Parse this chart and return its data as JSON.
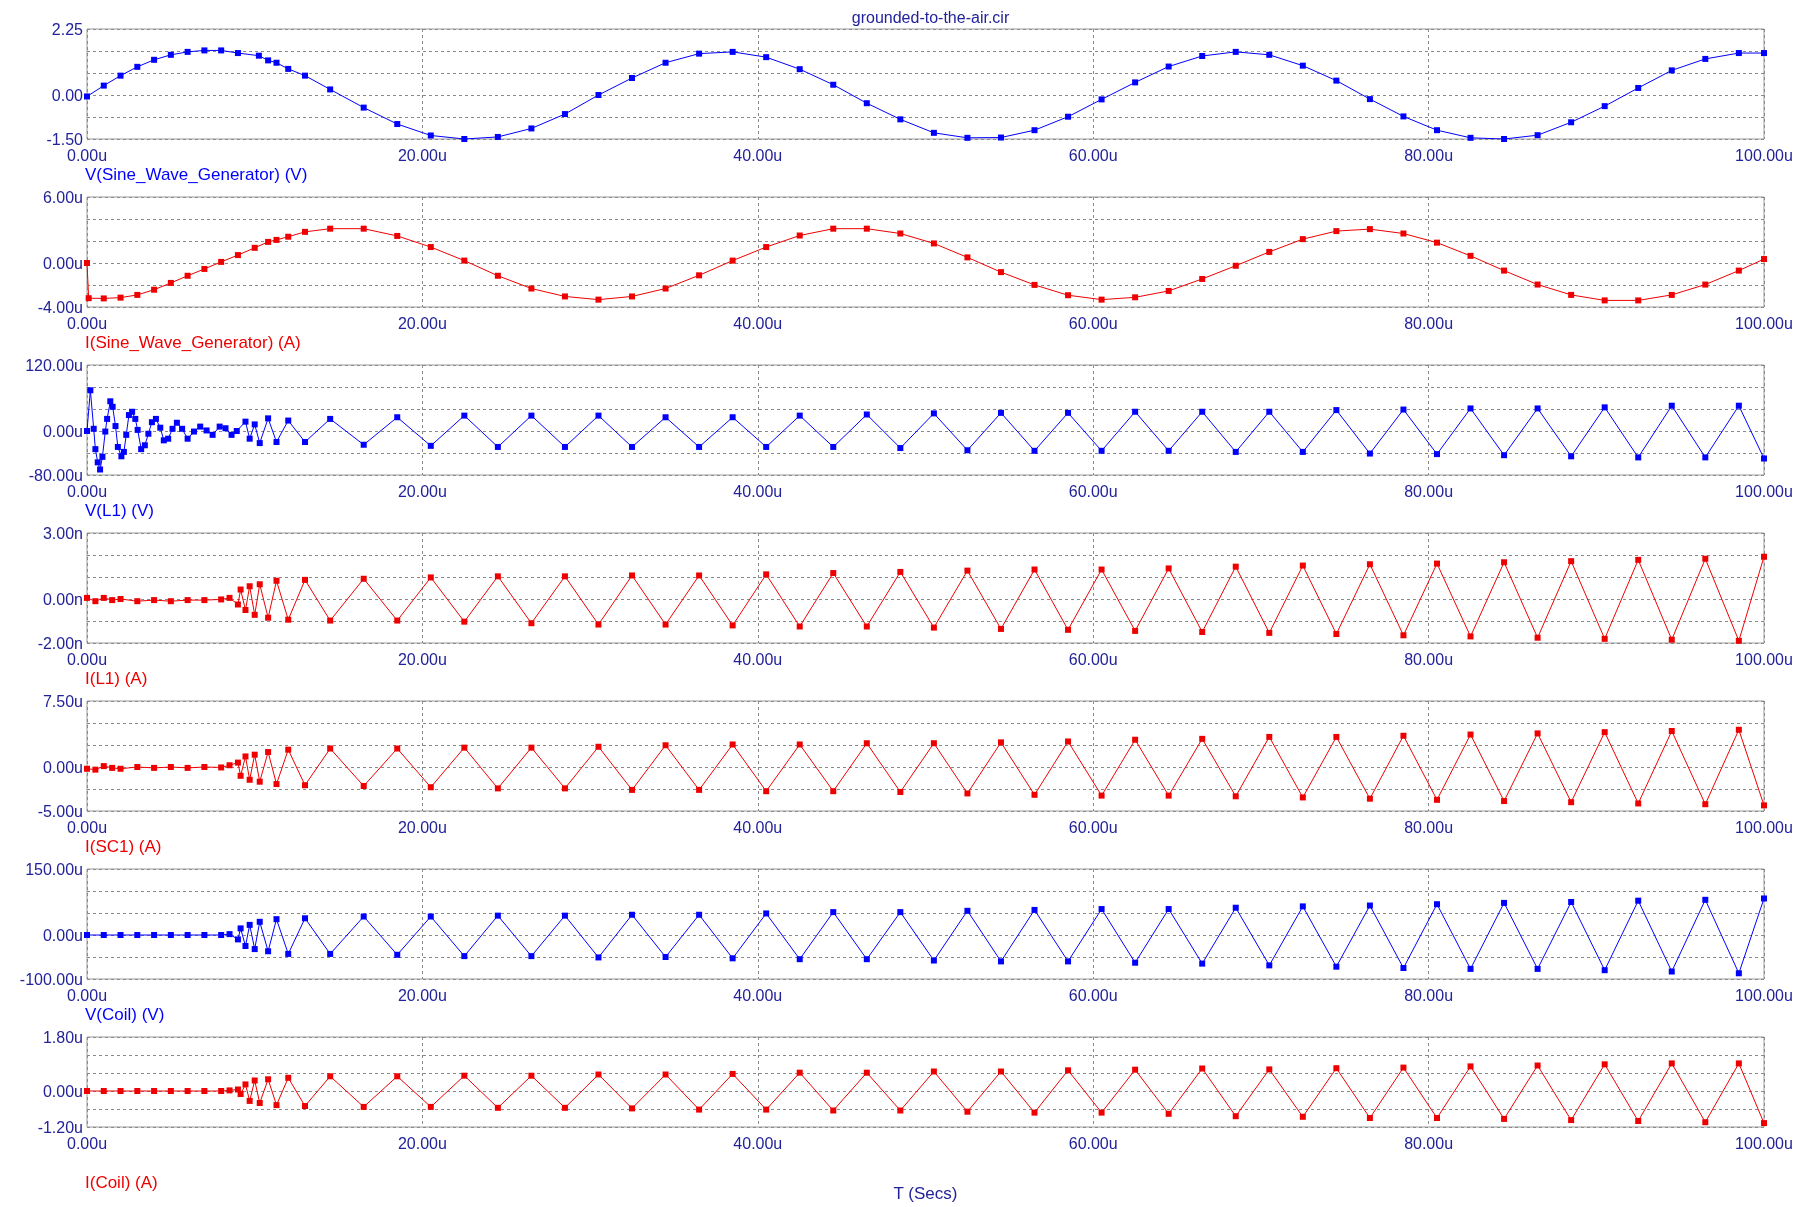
{
  "chart_data": [
    {
      "type": "line",
      "title": "grounded-to-the-air.cir",
      "legend": "bottom left",
      "marker": "square",
      "line_style": "solid",
      "grid": true,
      "xlim": [
        0,
        100
      ],
      "xticks": [
        {
          "value": 0,
          "label": "0.00u"
        },
        {
          "value": 20,
          "label": "20.00u"
        },
        {
          "value": 40,
          "label": "40.00u"
        },
        {
          "value": 60,
          "label": "60.00u"
        },
        {
          "value": 80,
          "label": "80.00u"
        },
        {
          "value": 100,
          "label": "100.00u"
        }
      ],
      "ylim": [
        -1.5,
        2.25
      ],
      "yticks": [
        {
          "value": 2.25,
          "label": "2.25"
        },
        {
          "value": 1.5,
          "label": null
        },
        {
          "value": 0.75,
          "label": null
        },
        {
          "value": 0,
          "label": "0.00"
        },
        {
          "value": -0.75,
          "label": null
        },
        {
          "value": -1.5,
          "label": "-1.50"
        }
      ],
      "x": [
        0,
        1,
        2,
        3,
        4,
        5,
        6,
        7,
        8,
        9,
        10.25,
        10.8,
        11.3,
        12,
        13,
        14.5,
        16.5,
        18.5,
        20.5,
        22.5,
        24.5,
        26.5,
        28.5,
        30.5,
        32.5,
        34.5,
        36.5,
        38.5,
        40.5,
        42.5,
        44.5,
        46.5,
        48.5,
        50.5,
        52.5,
        54.5,
        56.5,
        58.5,
        60.5,
        62.5,
        64.5,
        66.5,
        68.5,
        70.5,
        72.5,
        74.5,
        76.5,
        78.5,
        80.5,
        82.5,
        84.5,
        86.5,
        88.5,
        90.5,
        92.5,
        94.5,
        96.5,
        98.5,
        100
      ],
      "series": [
        {
          "name": "V(Sine_Wave_Generator) (V)",
          "color": "#0000ff",
          "values": [
            -0.05,
            0.32,
            0.66,
            0.96,
            1.2,
            1.37,
            1.47,
            1.52,
            1.52,
            1.43,
            1.34,
            1.18,
            1.1,
            0.89,
            0.66,
            0.19,
            -0.43,
            -0.99,
            -1.38,
            -1.5,
            -1.43,
            -1.14,
            -0.65,
            0,
            0.58,
            1.1,
            1.41,
            1.47,
            1.29,
            0.88,
            0.35,
            -0.28,
            -0.83,
            -1.29,
            -1.46,
            -1.45,
            -1.2,
            -0.74,
            -0.15,
            0.43,
            0.97,
            1.33,
            1.47,
            1.37,
            1.0,
            0.49,
            -0.14,
            -0.73,
            -1.2,
            -1.46,
            -1.5,
            -1.37,
            -0.93,
            -0.38,
            0.24,
            0.84,
            1.23,
            1.43,
            1.43
          ]
        }
      ]
    },
    {
      "type": "line",
      "legend": "bottom left",
      "marker": "square",
      "line_style": "solid",
      "grid": true,
      "xlim": [
        0,
        100
      ],
      "xticks": [
        {
          "value": 0,
          "label": "0.00u"
        },
        {
          "value": 20,
          "label": "20.00u"
        },
        {
          "value": 40,
          "label": "40.00u"
        },
        {
          "value": 60,
          "label": "60.00u"
        },
        {
          "value": 80,
          "label": "80.00u"
        },
        {
          "value": 100,
          "label": "100.00u"
        }
      ],
      "ylim": [
        -4,
        6
      ],
      "yticks": [
        {
          "value": 6,
          "label": "6.00u"
        },
        {
          "value": 4,
          "label": null
        },
        {
          "value": 2,
          "label": null
        },
        {
          "value": 0,
          "label": "0.00u"
        },
        {
          "value": -2,
          "label": null
        },
        {
          "value": -4,
          "label": "-4.00u"
        }
      ],
      "x": [
        0,
        0.1,
        1,
        2,
        3,
        4,
        5,
        6,
        7,
        8,
        9,
        10,
        10.8,
        11.3,
        12,
        13,
        14.5,
        16.5,
        18.5,
        20.5,
        22.5,
        24.5,
        26.5,
        28.5,
        30.5,
        32.5,
        34.5,
        36.5,
        38.5,
        40.5,
        42.5,
        44.5,
        46.5,
        48.5,
        50.5,
        52.5,
        54.5,
        56.5,
        58.5,
        60.5,
        62.5,
        64.5,
        66.5,
        68.5,
        70.5,
        72.5,
        74.5,
        76.5,
        78.5,
        80.5,
        82.5,
        84.5,
        86.5,
        88.5,
        90.5,
        92.5,
        94.5,
        96.5,
        98.5,
        100
      ],
      "series": [
        {
          "name": "I(Sine_Wave_Generator) (A)",
          "color": "#ee0000",
          "values": [
            0,
            -3.2,
            -3.22,
            -3.15,
            -2.9,
            -2.43,
            -1.81,
            -1.16,
            -0.54,
            0.1,
            0.72,
            1.38,
            1.92,
            2.1,
            2.39,
            2.83,
            3.12,
            3.12,
            2.46,
            1.45,
            0.22,
            -1.16,
            -2.32,
            -3.04,
            -3.33,
            -3.04,
            -2.32,
            -1.12,
            0.22,
            1.45,
            2.5,
            3.12,
            3.12,
            2.68,
            1.78,
            0.51,
            -0.83,
            -1.99,
            -2.93,
            -3.33,
            -3.12,
            -2.54,
            -1.45,
            -0.25,
            1.01,
            2.17,
            2.9,
            3.08,
            2.68,
            1.85,
            0.65,
            -0.69,
            -1.96,
            -2.9,
            -3.4,
            -3.4,
            -2.9,
            -1.96,
            -0.69,
            0.36
          ]
        }
      ]
    },
    {
      "type": "line",
      "legend": "bottom left",
      "marker": "square",
      "line_style": "solid",
      "grid": true,
      "xlim": [
        0,
        100
      ],
      "xticks": [
        {
          "value": 0,
          "label": "0.00u"
        },
        {
          "value": 20,
          "label": "20.00u"
        },
        {
          "value": 40,
          "label": "40.00u"
        },
        {
          "value": 60,
          "label": "60.00u"
        },
        {
          "value": 80,
          "label": "80.00u"
        },
        {
          "value": 100,
          "label": "100.00u"
        }
      ],
      "ylim": [
        -80,
        120
      ],
      "yticks": [
        {
          "value": 120,
          "label": "120.00u"
        },
        {
          "value": 80,
          "label": null
        },
        {
          "value": 40,
          "label": null
        },
        {
          "value": 0,
          "label": "0.00u"
        },
        {
          "value": -40,
          "label": null
        },
        {
          "value": -80,
          "label": "-80.00u"
        }
      ],
      "x": [
        0,
        0.2,
        0.4,
        0.5,
        0.64,
        0.78,
        0.92,
        1.09,
        1.2,
        1.39,
        1.53,
        1.7,
        1.84,
        2.05,
        2.2,
        2.34,
        2.5,
        2.69,
        2.88,
        3.02,
        3.23,
        3.45,
        3.66,
        3.87,
        4.11,
        4.37,
        4.58,
        4.84,
        5.1,
        5.36,
        5.67,
        6.0,
        6.38,
        6.75,
        7.13,
        7.49,
        7.91,
        8.26,
        8.62,
        8.93,
        9.45,
        9.7,
        10,
        10.3,
        10.8,
        11.3,
        12,
        13,
        14.5,
        16.5,
        18.5,
        20.5,
        22.5,
        24.5,
        26.5,
        28.5,
        30.5,
        32.5,
        34.5,
        36.5,
        38.5,
        40.5,
        42.5,
        44.5,
        46.5,
        48.5,
        50.5,
        52.5,
        54.5,
        56.5,
        58.5,
        60.5,
        62.5,
        64.5,
        66.5,
        68.5,
        70.5,
        72.5,
        74.5,
        76.5,
        78.5,
        80.5,
        82.5,
        84.5,
        86.5,
        88.5,
        90.5,
        92.5,
        94.5,
        96.5,
        98.5,
        100
      ],
      "series": [
        {
          "name": "V(L1) (V)",
          "color": "#0000ff",
          "values": [
            0,
            74,
            4,
            -33,
            -57,
            -70,
            -47,
            -1,
            22,
            54,
            44,
            9,
            -29,
            -46,
            -38,
            -7,
            29,
            35,
            22,
            2,
            -33,
            -26,
            -5,
            16,
            22,
            6,
            -17,
            -14,
            4,
            15,
            4,
            -14,
            -1,
            8,
            1,
            -7,
            8,
            5,
            -7,
            0,
            17,
            -14,
            12,
            -22,
            23,
            -20,
            19,
            -20,
            22,
            -25,
            25,
            -27,
            28,
            -29,
            28,
            -29,
            28,
            -29,
            25,
            -29,
            25,
            -29,
            28,
            -29,
            30,
            -31,
            32,
            -35,
            33,
            -36,
            33,
            -36,
            35,
            -36,
            35,
            -38,
            35,
            -38,
            38,
            -41,
            39,
            -42,
            41,
            -44,
            41,
            -46,
            43,
            -48,
            46,
            -48,
            46,
            -50
          ]
        }
      ]
    },
    {
      "type": "line",
      "legend": "bottom left",
      "marker": "square",
      "line_style": "solid",
      "grid": true,
      "xlim": [
        0,
        100
      ],
      "xticks": [
        {
          "value": 0,
          "label": "0.00u"
        },
        {
          "value": 20,
          "label": "20.00u"
        },
        {
          "value": 40,
          "label": "40.00u"
        },
        {
          "value": 60,
          "label": "60.00u"
        },
        {
          "value": 80,
          "label": "80.00u"
        },
        {
          "value": 100,
          "label": "100.00u"
        }
      ],
      "ylim": [
        -2,
        3
      ],
      "yticks": [
        {
          "value": 3,
          "label": "3.00n"
        },
        {
          "value": 2,
          "label": null
        },
        {
          "value": 1,
          "label": null
        },
        {
          "value": 0,
          "label": "0.00n"
        },
        {
          "value": -1,
          "label": null
        },
        {
          "value": -2,
          "label": "-2.00n"
        }
      ],
      "x": [
        0,
        0.5,
        1,
        1.5,
        2,
        3,
        4,
        5,
        6,
        7,
        8,
        8.5,
        9,
        9.16,
        9.45,
        9.7,
        10,
        10.3,
        10.8,
        11.3,
        12,
        13,
        14.5,
        16.5,
        18.5,
        20.5,
        22.5,
        24.5,
        26.5,
        28.5,
        30.5,
        32.5,
        34.5,
        36.5,
        38.5,
        40.5,
        42.5,
        44.5,
        46.5,
        48.5,
        50.5,
        52.5,
        54.5,
        56.5,
        58.5,
        60.5,
        62.5,
        64.5,
        66.5,
        68.5,
        70.5,
        72.5,
        74.5,
        76.5,
        78.5,
        80.5,
        82.5,
        84.5,
        86.5,
        88.5,
        90.5,
        92.5,
        94.5,
        96.5,
        98.5,
        100
      ],
      "series": [
        {
          "name": "I(L1) (A)",
          "color": "#ee0000",
          "values": [
            0.05,
            -0.1,
            0.05,
            -0.05,
            0,
            -0.1,
            -0.05,
            -0.1,
            -0.05,
            -0.05,
            -0.02,
            0.05,
            -0.25,
            0.43,
            -0.5,
            0.58,
            -0.72,
            0.67,
            -0.85,
            0.83,
            -0.94,
            0.87,
            -0.98,
            0.92,
            -0.98,
            0.98,
            -1.03,
            1.03,
            -1.1,
            1.03,
            -1.16,
            1.07,
            -1.16,
            1.07,
            -1.2,
            1.12,
            -1.25,
            1.18,
            -1.25,
            1.23,
            -1.3,
            1.29,
            -1.36,
            1.34,
            -1.4,
            1.34,
            -1.45,
            1.39,
            -1.5,
            1.47,
            -1.54,
            1.52,
            -1.59,
            1.58,
            -1.65,
            1.61,
            -1.7,
            1.67,
            -1.76,
            1.72,
            -1.81,
            1.78,
            -1.85,
            1.83,
            -1.9,
            1.92
          ]
        }
      ]
    },
    {
      "type": "line",
      "legend": "bottom left",
      "marker": "square",
      "line_style": "solid",
      "grid": true,
      "xlim": [
        0,
        100
      ],
      "xticks": [
        {
          "value": 0,
          "label": "0.00u"
        },
        {
          "value": 20,
          "label": "20.00u"
        },
        {
          "value": 40,
          "label": "40.00u"
        },
        {
          "value": 60,
          "label": "60.00u"
        },
        {
          "value": 80,
          "label": "80.00u"
        },
        {
          "value": 100,
          "label": "100.00u"
        }
      ],
      "ylim": [
        -5,
        7.5
      ],
      "yticks": [
        {
          "value": 7.5,
          "label": "7.50u"
        },
        {
          "value": 5,
          "label": null
        },
        {
          "value": 2.5,
          "label": null
        },
        {
          "value": 0,
          "label": "0.00u"
        },
        {
          "value": -2.5,
          "label": null
        },
        {
          "value": -5,
          "label": "-5.00u"
        }
      ],
      "x": [
        0,
        0.5,
        1,
        1.5,
        2,
        3,
        4,
        5,
        6,
        7,
        8,
        8.5,
        9,
        9.16,
        9.45,
        9.7,
        10,
        10.3,
        10.8,
        11.3,
        12,
        13,
        14.5,
        16.5,
        18.5,
        20.5,
        22.5,
        24.5,
        26.5,
        28.5,
        30.5,
        32.5,
        34.5,
        36.5,
        38.5,
        40.5,
        42.5,
        44.5,
        46.5,
        48.5,
        50.5,
        52.5,
        54.5,
        56.5,
        58.5,
        60.5,
        62.5,
        64.5,
        66.5,
        68.5,
        70.5,
        72.5,
        74.5,
        76.5,
        78.5,
        80.5,
        82.5,
        84.5,
        86.5,
        88.5,
        90.5,
        92.5,
        94.5,
        96.5,
        98.5,
        100
      ],
      "series": [
        {
          "name": "I(SC1) (A)",
          "color": "#ee0000",
          "values": [
            -0.2,
            -0.3,
            0.1,
            -0.1,
            -0.2,
            0,
            -0.1,
            0,
            -0.1,
            0,
            -0.05,
            0.2,
            0.5,
            -1.0,
            1.2,
            -1.45,
            1.4,
            -1.67,
            1.7,
            -1.94,
            1.97,
            -2.07,
            2.1,
            -2.16,
            2.1,
            -2.3,
            2.2,
            -2.43,
            2.2,
            -2.43,
            2.3,
            -2.6,
            2.47,
            -2.6,
            2.56,
            -2.75,
            2.56,
            -2.75,
            2.7,
            -2.84,
            2.7,
            -3.0,
            2.8,
            -3.16,
            2.9,
            -3.25,
            3.1,
            -3.25,
            3.2,
            -3.33,
            3.42,
            -3.46,
            3.42,
            -3.6,
            3.55,
            -3.73,
            3.69,
            -3.87,
            3.82,
            -4.0,
            3.96,
            -4.14,
            4.09,
            -4.23,
            4.23,
            -4.36
          ]
        }
      ]
    },
    {
      "type": "line",
      "legend": "bottom left",
      "marker": "square",
      "line_style": "solid",
      "grid": true,
      "xlim": [
        0,
        100
      ],
      "xticks": [
        {
          "value": 0,
          "label": "0.00u"
        },
        {
          "value": 20,
          "label": "20.00u"
        },
        {
          "value": 40,
          "label": "40.00u"
        },
        {
          "value": 60,
          "label": "60.00u"
        },
        {
          "value": 80,
          "label": "80.00u"
        },
        {
          "value": 100,
          "label": "100.00u"
        }
      ],
      "ylim": [
        -100,
        150
      ],
      "yticks": [
        {
          "value": 150,
          "label": "150.00u"
        },
        {
          "value": 100,
          "label": null
        },
        {
          "value": 50,
          "label": null
        },
        {
          "value": 0,
          "label": "0.00u"
        },
        {
          "value": -50,
          "label": null
        },
        {
          "value": -100,
          "label": "-100.00u"
        }
      ],
      "x": [
        0,
        1,
        2,
        3,
        4,
        5,
        6,
        7,
        8,
        8.5,
        9,
        9.16,
        9.45,
        9.7,
        10,
        10.3,
        10.8,
        11.3,
        12,
        13,
        14.5,
        16.5,
        18.5,
        20.5,
        22.5,
        24.5,
        26.5,
        28.5,
        30.5,
        32.5,
        34.5,
        36.5,
        38.5,
        40.5,
        42.5,
        44.5,
        46.5,
        48.5,
        50.5,
        52.5,
        54.5,
        56.5,
        58.5,
        60.5,
        62.5,
        64.5,
        66.5,
        68.5,
        70.5,
        72.5,
        74.5,
        76.5,
        78.5,
        80.5,
        82.5,
        84.5,
        86.5,
        88.5,
        90.5,
        92.5,
        94.5,
        96.5,
        98.5,
        100
      ],
      "series": [
        {
          "name": "V(Coil) (V)",
          "color": "#0000ff",
          "values": [
            0,
            0,
            0,
            0,
            0,
            0,
            0,
            0,
            0,
            2,
            -10,
            15,
            -25,
            23,
            -32,
            30,
            -37,
            36,
            -43,
            38,
            -43,
            42,
            -45,
            42,
            -48,
            44,
            -48,
            44,
            -51,
            46,
            -50,
            46,
            -53,
            49,
            -55,
            52,
            -55,
            52,
            -58,
            55,
            -60,
            57,
            -60,
            59,
            -63,
            59,
            -65,
            62,
            -69,
            65,
            -72,
            67,
            -75,
            70,
            -77,
            73,
            -77,
            75,
            -80,
            78,
            -83,
            80,
            -87,
            83
          ]
        }
      ]
    },
    {
      "type": "line",
      "xlabel": "T (Secs)",
      "legend": "bottom left",
      "marker": "square",
      "line_style": "solid",
      "grid": true,
      "xlim": [
        0,
        100
      ],
      "xticks": [
        {
          "value": 0,
          "label": "0.00u"
        },
        {
          "value": 20,
          "label": "20.00u"
        },
        {
          "value": 40,
          "label": "40.00u"
        },
        {
          "value": 60,
          "label": "60.00u"
        },
        {
          "value": 80,
          "label": "80.00u"
        },
        {
          "value": 100,
          "label": "100.00u"
        }
      ],
      "ylim": [
        -1.2,
        1.8
      ],
      "yticks": [
        {
          "value": 1.8,
          "label": "1.80u"
        },
        {
          "value": 1.2,
          "label": null
        },
        {
          "value": 0.6,
          "label": null
        },
        {
          "value": 0,
          "label": "0.00u"
        },
        {
          "value": -0.6,
          "label": null
        },
        {
          "value": -1.2,
          "label": "-1.20u"
        }
      ],
      "x": [
        0,
        1,
        2,
        3,
        4,
        5,
        6,
        7,
        8,
        8.5,
        9,
        9.16,
        9.45,
        9.7,
        10,
        10.3,
        10.8,
        11.3,
        12,
        13,
        14.5,
        16.5,
        18.5,
        20.5,
        22.5,
        24.5,
        26.5,
        28.5,
        30.5,
        32.5,
        34.5,
        36.5,
        38.5,
        40.5,
        42.5,
        44.5,
        46.5,
        48.5,
        50.5,
        52.5,
        54.5,
        56.5,
        58.5,
        60.5,
        62.5,
        64.5,
        66.5,
        68.5,
        70.5,
        72.5,
        74.5,
        76.5,
        78.5,
        80.5,
        82.5,
        84.5,
        86.5,
        88.5,
        90.5,
        92.5,
        94.5,
        96.5,
        98.5,
        100
      ],
      "series": [
        {
          "name": "I(Coil) (A)",
          "color": "#ee0000",
          "values": [
            0,
            0,
            0,
            0,
            0,
            0,
            0,
            0,
            0,
            0.02,
            0.05,
            -0.1,
            0.22,
            -0.33,
            0.35,
            -0.4,
            0.39,
            -0.47,
            0.44,
            -0.5,
            0.49,
            -0.53,
            0.49,
            -0.53,
            0.51,
            -0.56,
            0.51,
            -0.56,
            0.55,
            -0.58,
            0.55,
            -0.62,
            0.57,
            -0.62,
            0.61,
            -0.65,
            0.61,
            -0.65,
            0.65,
            -0.69,
            0.65,
            -0.72,
            0.69,
            -0.72,
            0.71,
            -0.76,
            0.75,
            -0.84,
            0.72,
            -0.86,
            0.76,
            -0.9,
            0.78,
            -0.9,
            0.82,
            -0.93,
            0.85,
            -0.97,
            0.89,
            -1.0,
            0.92,
            -1.04,
            0.92,
            -1.07
          ]
        }
      ]
    }
  ]
}
